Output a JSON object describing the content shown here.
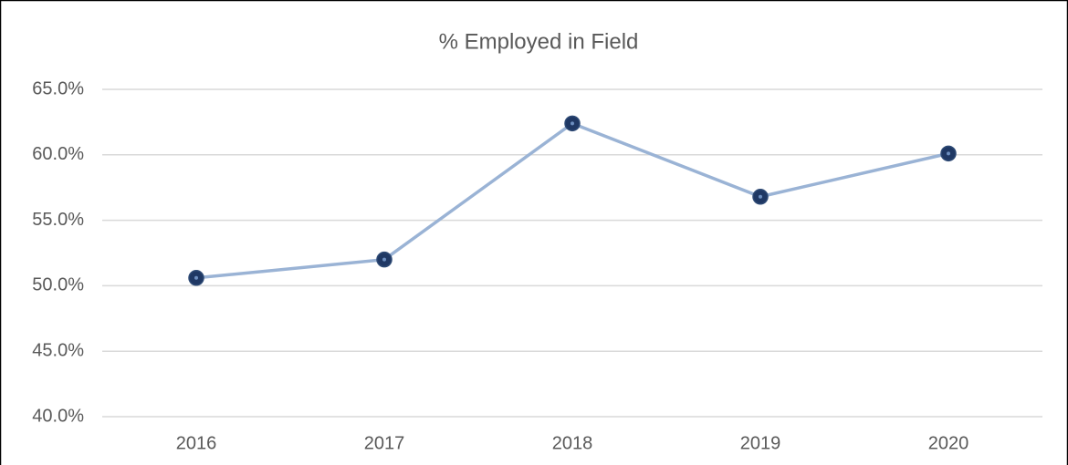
{
  "chart_data": {
    "type": "line",
    "title": "% Employed in Field",
    "categories": [
      "2016",
      "2017",
      "2018",
      "2019",
      "2020"
    ],
    "values": [
      50.6,
      52.0,
      62.4,
      56.8,
      60.1
    ],
    "color": "#9ab3d5",
    "marker_color": "#1f3864",
    "ylim": [
      40,
      65
    ],
    "yticks": [
      {
        "value": 40,
        "label": "40.0%"
      },
      {
        "value": 45,
        "label": "45.0%"
      },
      {
        "value": 50,
        "label": "50.0%"
      },
      {
        "value": 55,
        "label": "55.0%"
      },
      {
        "value": 60,
        "label": "60.0%"
      },
      {
        "value": 65,
        "label": "65.0%"
      }
    ],
    "grid": true
  }
}
